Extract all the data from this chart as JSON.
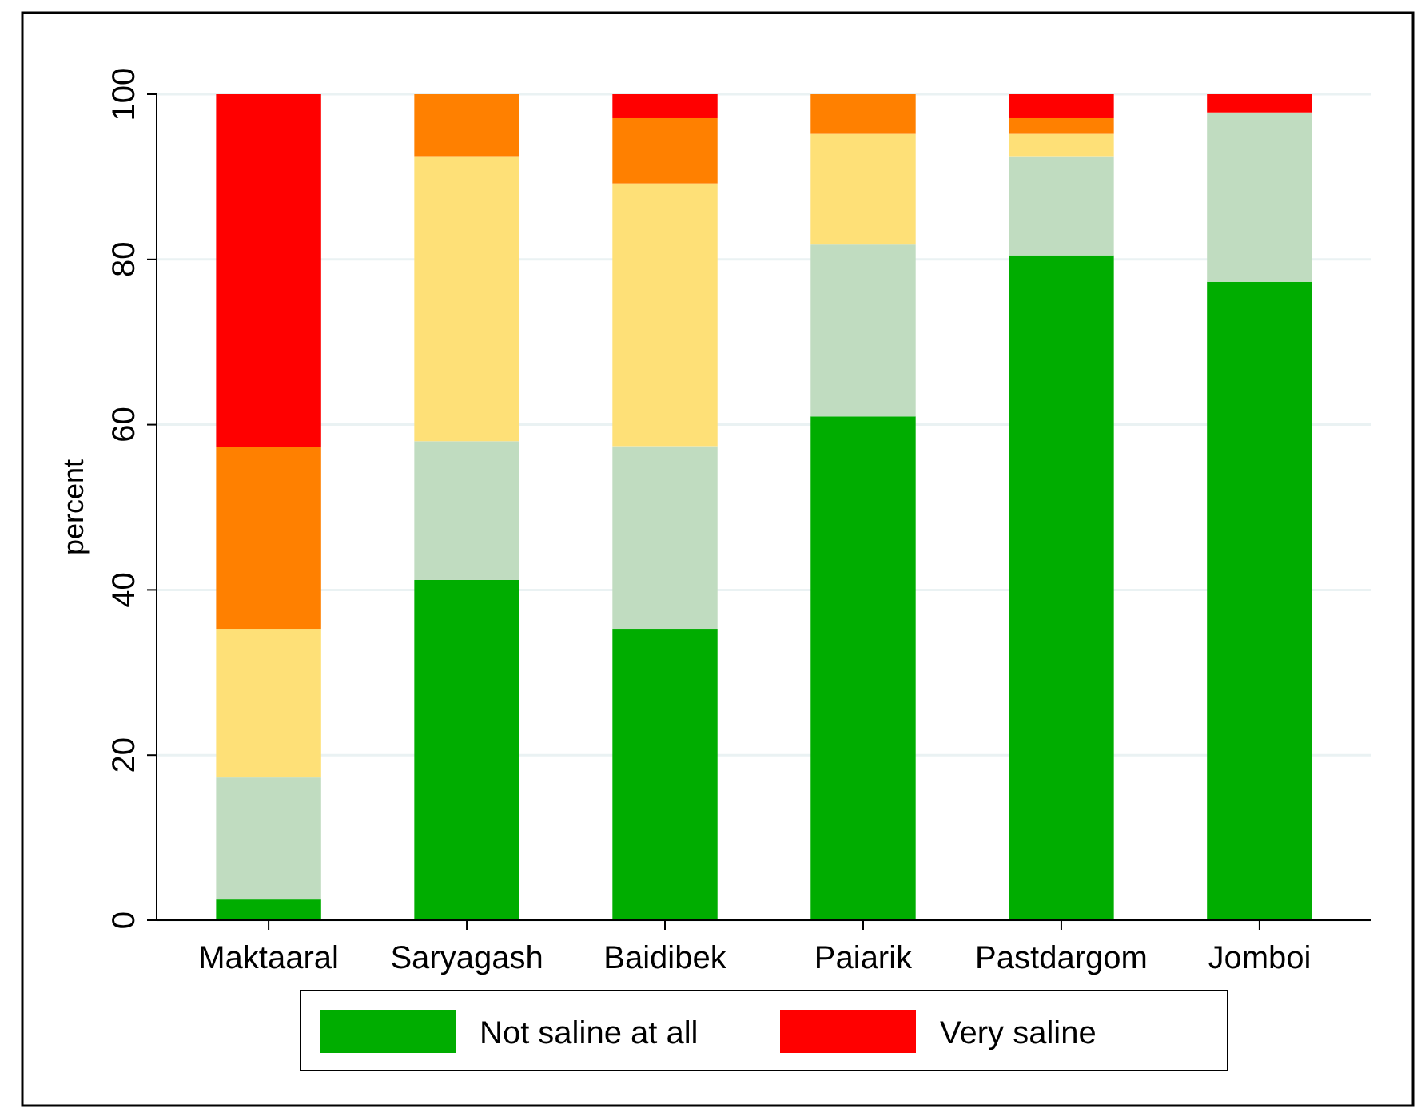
{
  "chart_data": {
    "type": "bar",
    "stacked": true,
    "ylabel": "percent",
    "categories": [
      "Maktaaral",
      "Saryagash",
      "Baidibek",
      "Paiarik",
      "Pastdargom",
      "Jomboi"
    ],
    "series": [
      {
        "name": "Not saline at all",
        "color": "#00ad00",
        "values": [
          2.6,
          41.2,
          35.2,
          61,
          80.5,
          77.3
        ]
      },
      {
        "color": "#c0dcc0",
        "values": [
          14.7,
          16.8,
          22.2,
          20.8,
          12,
          20.5
        ]
      },
      {
        "color": "#fee077",
        "values": [
          17.9,
          34.5,
          31.8,
          13.4,
          2.7,
          0
        ]
      },
      {
        "color": "#ff8000",
        "values": [
          22.1,
          7.5,
          7.9,
          4.8,
          1.9,
          0
        ]
      },
      {
        "name": "Very saline",
        "color": "#ff0000",
        "values": [
          42.7,
          0,
          2.9,
          0,
          2.9,
          2.2
        ]
      }
    ],
    "ylim": [
      0,
      100
    ],
    "yticks": [
      0,
      20,
      40,
      60,
      80,
      100
    ],
    "grid": "y",
    "legend": "bottom"
  }
}
